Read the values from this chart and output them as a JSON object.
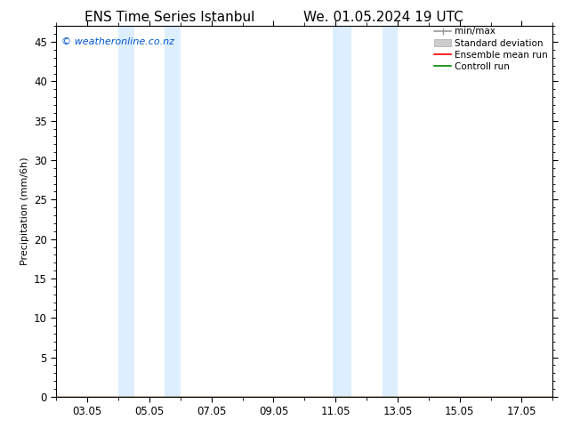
{
  "title_left": "ENS Time Series Istanbul",
  "title_right": "We. 01.05.2024 19 UTC",
  "ylabel": "Precipitation (mm/6h)",
  "watermark": "© weatheronline.co.nz",
  "xlim": [
    2.0,
    18.0
  ],
  "ylim": [
    0,
    47
  ],
  "yticks": [
    0,
    5,
    10,
    15,
    20,
    25,
    30,
    35,
    40,
    45
  ],
  "xtick_labels": [
    "03.05",
    "05.05",
    "07.05",
    "09.05",
    "11.05",
    "13.05",
    "15.05",
    "17.05"
  ],
  "xtick_positions": [
    3,
    5,
    7,
    9,
    11,
    13,
    15,
    17
  ],
  "shaded_regions": [
    {
      "xmin": 4.0,
      "xmax": 4.5,
      "color": "#ddeeff"
    },
    {
      "xmin": 5.5,
      "xmax": 6.0,
      "color": "#ddeeff"
    },
    {
      "xmin": 10.9,
      "xmax": 11.5,
      "color": "#ddeeff"
    },
    {
      "xmin": 12.5,
      "xmax": 13.0,
      "color": "#ddeeff"
    }
  ],
  "background_color": "#ffffff",
  "plot_bg_color": "#ffffff",
  "title_fontsize": 11,
  "axis_fontsize": 8,
  "tick_fontsize": 8.5,
  "watermark_color": "#0055cc",
  "watermark_fontsize": 8
}
